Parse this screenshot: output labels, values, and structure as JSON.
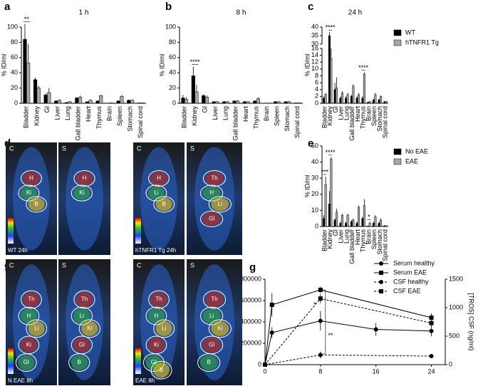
{
  "chart_data": [
    {
      "type": "bar",
      "panel": "a",
      "title": "1 h",
      "ylabel": "% ID/ml",
      "categories": [
        "Bladder",
        "Kidney",
        "GI",
        "Liver",
        "Lung",
        "Gall bladder",
        "Heart",
        "Thymus",
        "Brain",
        "Spleen",
        "Stomach",
        "Spinal cord"
      ],
      "series": [
        {
          "color": "#000000",
          "values": [
            84,
            31,
            11,
            3,
            1,
            7,
            2,
            3,
            0.3,
            3,
            4,
            0.5
          ],
          "errors": [
            20,
            3,
            2,
            1,
            0.5,
            1,
            0.5,
            1,
            0.1,
            1,
            1,
            0.2
          ]
        },
        {
          "color": "#a6a6a6",
          "values": [
            53,
            20,
            14,
            4,
            2,
            8,
            4,
            10,
            0.5,
            9,
            4,
            0.5
          ],
          "errors": [
            25,
            3,
            6,
            1,
            1,
            2,
            1,
            1,
            0.2,
            2,
            1,
            0.2
          ]
        }
      ],
      "ylim": [
        0,
        100
      ],
      "yticks": [
        0,
        20,
        40,
        60,
        80,
        100
      ],
      "annotations": [
        {
          "text": "**",
          "x": "Bladder"
        }
      ]
    },
    {
      "type": "bar",
      "panel": "b",
      "title": "8 h",
      "ylabel": "% ID/ml",
      "categories": [
        "Bladder",
        "Kidney",
        "GI",
        "Liver",
        "Lung",
        "Gall bladder",
        "Heart",
        "Thymus",
        "Brain",
        "Spleen",
        "Stomach",
        "Spinal cord"
      ],
      "series": [
        {
          "color": "#000000",
          "values": [
            7,
            36,
            10,
            2,
            2,
            3,
            2,
            3,
            0.3,
            2,
            2,
            0.5
          ],
          "errors": [
            4,
            12,
            2,
            1,
            1,
            1,
            1,
            1,
            0.1,
            1,
            1,
            0.2
          ]
        },
        {
          "color": "#a6a6a6",
          "values": [
            5,
            15,
            8,
            2,
            2,
            3,
            2,
            6,
            0.3,
            2,
            2,
            0.5
          ],
          "errors": [
            3,
            9,
            2,
            1,
            1,
            1,
            1,
            2,
            0.1,
            1,
            1,
            0.2
          ]
        }
      ],
      "ylim": [
        0,
        100
      ],
      "yticks": [
        0,
        20,
        40,
        60,
        80,
        100
      ],
      "annotations": [
        {
          "text": "****",
          "x": "Kidney"
        }
      ]
    },
    {
      "type": "bar",
      "panel": "c",
      "title": "24 h",
      "ylabel": "% ID/ml",
      "categories": [
        "Bladder",
        "Kidney",
        "GI",
        "Liver",
        "Lung",
        "Gall bladder",
        "Heart",
        "Thymus",
        "Brain",
        "Spleen",
        "Stomach",
        "Spinal cord"
      ],
      "series": [
        {
          "name": "WT",
          "color": "#000000",
          "values": [
            1.5,
            35,
            4,
            1.5,
            1.5,
            2,
            1.5,
            1.5,
            0.3,
            1,
            1,
            0.5
          ],
          "errors": [
            0.5,
            2,
            2,
            0.5,
            0.5,
            0.5,
            0.5,
            0.5,
            0.1,
            0.3,
            0.3,
            0.1
          ]
        },
        {
          "name": "hTNFR1 Tg",
          "color": "#a6a6a6",
          "values": [
            2.5,
            13,
            4.5,
            3,
            2.5,
            5,
            2.5,
            8.5,
            0.5,
            2.5,
            2,
            0.5
          ],
          "errors": [
            0.5,
            3,
            3,
            0.5,
            0.5,
            0.5,
            0.5,
            0.5,
            0.2,
            0.5,
            0.3,
            0.1
          ]
        }
      ],
      "ylim": [
        0,
        40
      ],
      "ybreak": [
        16,
        30
      ],
      "yticks": [
        0,
        2,
        4,
        6,
        8,
        10,
        12,
        14,
        16,
        30,
        35,
        40
      ],
      "annotations": [
        {
          "text": "****",
          "x": "Kidney"
        },
        {
          "text": "****",
          "x": "Thymus"
        }
      ]
    },
    {
      "type": "bar",
      "panel": "e",
      "ylabel": "% ID/ml",
      "categories": [
        "Bladder",
        "Kidney",
        "GI",
        "Liver",
        "Lung",
        "Gall bladder",
        "Heart",
        "Thymus",
        "Brain",
        "Spleen",
        "Stomach",
        "Spinal cord"
      ],
      "series": [
        {
          "name": "No EAE",
          "color": "#000000",
          "values": [
            5,
            14,
            4,
            2,
            2,
            3,
            2,
            5,
            0.3,
            2,
            2,
            0.5
          ],
          "errors": [
            2,
            8,
            1,
            1,
            1,
            1,
            1,
            1,
            0.1,
            1,
            1,
            0.2
          ]
        },
        {
          "name": "EAE",
          "color": "#a6a6a6",
          "values": [
            26,
            42,
            9,
            7,
            7,
            4,
            12,
            13,
            2,
            6,
            4,
            0.5
          ],
          "errors": [
            5,
            1,
            2,
            1,
            1,
            1,
            1,
            4,
            1,
            1,
            1,
            0.2
          ]
        }
      ],
      "ylim": [
        0,
        50
      ],
      "yticks": [
        0,
        10,
        20,
        30,
        40,
        50
      ],
      "annotations": [
        {
          "text": "***",
          "x": "Bladder"
        },
        {
          "text": "****",
          "x": "Kidney"
        },
        {
          "text": "*",
          "x": "Brain"
        }
      ]
    },
    {
      "type": "line",
      "panel": "g",
      "ylabel": "[TROS] serum (ng/ml)",
      "y2label": "[TROS] CSF (ng/ml)",
      "series": [
        {
          "name": "Serum healthy",
          "color": "#000000",
          "marker": "circle",
          "dashed": false,
          "x": [
            0,
            1,
            8,
            16,
            24
          ],
          "values": [
            0,
            300000,
            410000,
            330000,
            315000
          ],
          "errors": [
            0,
            50000,
            90000,
            60000,
            50000
          ]
        },
        {
          "name": "Serum EAE",
          "color": "#000000",
          "marker": "square",
          "dashed": false,
          "x": [
            0,
            1,
            8,
            24
          ],
          "values": [
            0,
            560000,
            700000,
            440000
          ],
          "errors": [
            0,
            110000,
            30000,
            40000
          ]
        },
        {
          "name": "CSF healthy",
          "color": "#000000",
          "marker": "circle",
          "dashed": true,
          "axis": "y2",
          "x": [
            0,
            8,
            24
          ],
          "values": [
            0,
            170,
            150
          ],
          "errors": [
            0,
            60,
            30
          ]
        },
        {
          "name": "CSF EAE",
          "color": "#000000",
          "marker": "square",
          "dashed": true,
          "axis": "y2",
          "x": [
            0,
            8,
            24
          ],
          "values": [
            0,
            1160,
            730
          ],
          "errors": [
            0,
            80,
            60
          ]
        }
      ],
      "xlim": [
        0,
        26
      ],
      "xticks": [
        0,
        8,
        16,
        24
      ],
      "ylim": [
        0,
        800000
      ],
      "yticks": [
        0,
        200000,
        400000,
        600000,
        800000
      ],
      "y2lim": [
        0,
        1500
      ],
      "y2ticks": [
        0,
        500,
        1000,
        1500
      ],
      "annotations": [
        {
          "text": "*",
          "x": 8
        },
        {
          "text": "**",
          "x": 8
        }
      ]
    }
  ],
  "images": [
    {
      "panel": "d",
      "items": [
        {
          "view": "C",
          "caption": "WT 24h",
          "labels": [
            "H",
            "Ki",
            "B"
          ]
        },
        {
          "view": "S",
          "labels": [
            "H",
            "Ki"
          ]
        },
        {
          "view": "C",
          "caption": "hTNFR1 Tg 24h",
          "labels": [
            "H",
            "Li",
            "B"
          ]
        },
        {
          "view": "S",
          "labels": [
            "Th",
            "H",
            "Li",
            "Gl"
          ]
        }
      ]
    },
    {
      "panel": "f",
      "items": [
        {
          "view": "C",
          "caption": "N EAE 8h",
          "labels": [
            "Th",
            "H",
            "Li",
            "Ki",
            "Gl"
          ]
        },
        {
          "view": "S",
          "labels": [
            "Th",
            "Li",
            "Ki",
            "Gl",
            "B"
          ]
        },
        {
          "view": "C",
          "caption": "EAE 8h",
          "labels": [
            "Th",
            "H",
            "Li",
            "Ki",
            "Gl",
            "B"
          ]
        },
        {
          "view": "S",
          "labels": [
            "Th",
            "Li",
            "Ki",
            "Gl",
            "B"
          ]
        }
      ]
    }
  ]
}
